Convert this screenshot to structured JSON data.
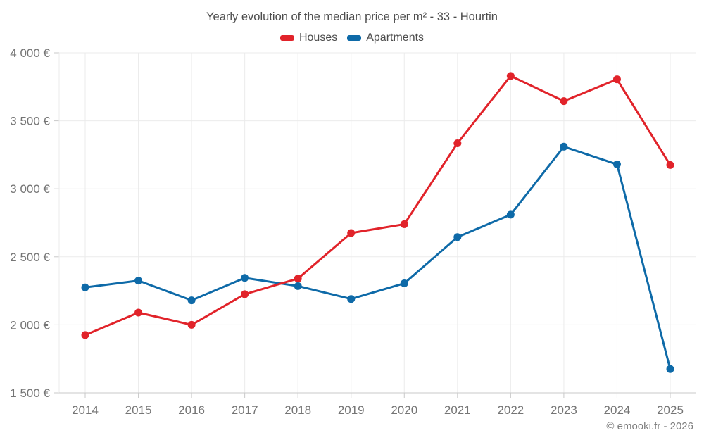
{
  "title": "Yearly evolution of the median price per m² - 33 - Hourtin",
  "legend": {
    "items": [
      {
        "label": "Houses",
        "color": "#e1232a"
      },
      {
        "label": "Apartments",
        "color": "#0e6aa8"
      }
    ]
  },
  "footer": {
    "attribution": "© emooki.fr - 2026"
  },
  "colors": {
    "houses": "#e1232a",
    "apartments": "#0e6aa8",
    "grid": "#ebebeb",
    "axis": "#c9c9c9",
    "tick_label": "#757575",
    "title_text": "#4d4d4d"
  },
  "chart_data": {
    "type": "line",
    "title": "Yearly evolution of the median price per m² - 33 - Hourtin",
    "x": [
      "2014",
      "2015",
      "2016",
      "2017",
      "2018",
      "2019",
      "2020",
      "2021",
      "2022",
      "2023",
      "2024",
      "2025"
    ],
    "series": [
      {
        "name": "Houses",
        "color": "#e1232a",
        "values": [
          1925,
          2090,
          2000,
          2225,
          2340,
          2675,
          2740,
          3335,
          3830,
          3645,
          3805,
          3175
        ]
      },
      {
        "name": "Apartments",
        "color": "#0e6aa8",
        "values": [
          2275,
          2325,
          2180,
          2345,
          2285,
          2190,
          2305,
          2645,
          2810,
          3310,
          3180,
          1675
        ]
      }
    ],
    "xlabel": "",
    "ylabel": "",
    "ylim": [
      1500,
      4000
    ],
    "ytick_step": 500,
    "ytick_labels": [
      "1 500 €",
      "2 000 €",
      "2 500 €",
      "3 000 €",
      "3 500 €",
      "4 000 €"
    ],
    "grid": true,
    "markers": true,
    "legend_position": "top"
  }
}
